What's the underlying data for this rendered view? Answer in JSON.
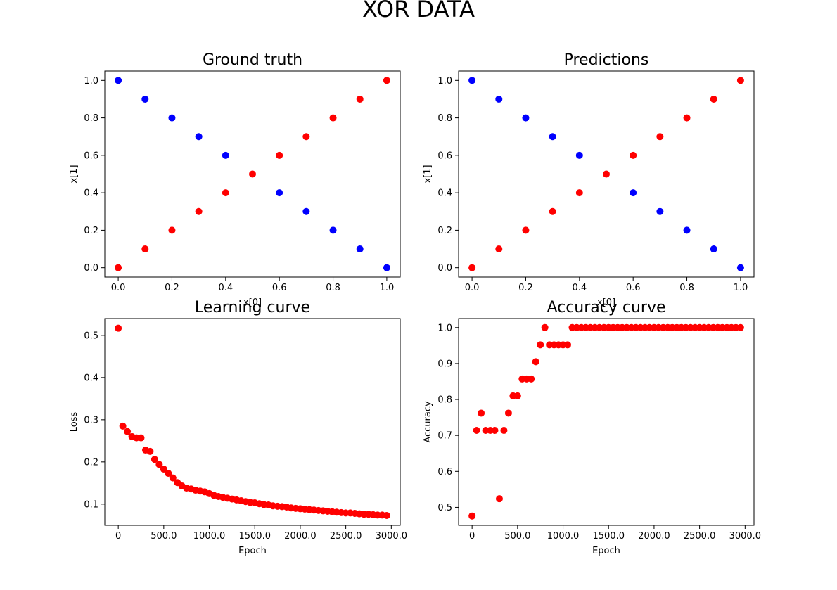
{
  "figure": {
    "suptitle": "XOR DATA"
  },
  "colors": {
    "class0": "#0000ff",
    "class1": "#ff0000",
    "curve": "#ff0000",
    "axes": "#000000"
  },
  "chart_data": [
    {
      "id": "ground-truth",
      "type": "scatter",
      "title": "Ground truth",
      "xlabel": "x[0]",
      "ylabel": "x[1]",
      "xlim": [
        -0.05,
        1.05
      ],
      "ylim": [
        -0.05,
        1.05
      ],
      "xticks": [
        0.0,
        0.2,
        0.4,
        0.6,
        0.8,
        1.0
      ],
      "yticks": [
        0.0,
        0.2,
        0.4,
        0.6,
        0.8,
        1.0
      ],
      "tick_decimals": 1,
      "grid": false,
      "series": [
        {
          "color": "#0000ff",
          "x": [
            0.0,
            0.1,
            0.2,
            0.3,
            0.4,
            0.6,
            0.7,
            0.8,
            0.9,
            1.0
          ],
          "y": [
            1.0,
            0.9,
            0.8,
            0.7,
            0.6,
            0.4,
            0.3,
            0.2,
            0.1,
            0.0
          ]
        },
        {
          "color": "#ff0000",
          "x": [
            0.0,
            0.1,
            0.2,
            0.3,
            0.4,
            0.5,
            0.6,
            0.7,
            0.8,
            0.9,
            1.0
          ],
          "y": [
            0.0,
            0.1,
            0.2,
            0.3,
            0.4,
            0.5,
            0.6,
            0.7,
            0.8,
            0.9,
            1.0
          ]
        }
      ]
    },
    {
      "id": "predictions",
      "type": "scatter",
      "title": "Predictions",
      "xlabel": "x[0]",
      "ylabel": "x[1]",
      "xlim": [
        -0.05,
        1.05
      ],
      "ylim": [
        -0.05,
        1.05
      ],
      "xticks": [
        0.0,
        0.2,
        0.4,
        0.6,
        0.8,
        1.0
      ],
      "yticks": [
        0.0,
        0.2,
        0.4,
        0.6,
        0.8,
        1.0
      ],
      "tick_decimals": 1,
      "grid": false,
      "series": [
        {
          "color": "#0000ff",
          "x": [
            0.0,
            0.1,
            0.2,
            0.3,
            0.4,
            0.6,
            0.7,
            0.8,
            0.9,
            1.0
          ],
          "y": [
            1.0,
            0.9,
            0.8,
            0.7,
            0.6,
            0.4,
            0.3,
            0.2,
            0.1,
            0.0
          ]
        },
        {
          "color": "#ff0000",
          "x": [
            0.0,
            0.1,
            0.2,
            0.3,
            0.4,
            0.5,
            0.6,
            0.7,
            0.8,
            0.9,
            1.0
          ],
          "y": [
            0.0,
            0.1,
            0.2,
            0.3,
            0.4,
            0.5,
            0.6,
            0.7,
            0.8,
            0.9,
            1.0
          ]
        }
      ]
    },
    {
      "id": "learning-curve",
      "type": "scatter",
      "title": "Learning curve",
      "xlabel": "Epoch",
      "ylabel": "Loss",
      "xlim": [
        -148,
        3098
      ],
      "ylim": [
        0.0497,
        0.5398
      ],
      "xticks": [
        0,
        500,
        1000,
        1500,
        2000,
        2500,
        3000
      ],
      "yticks": [
        0.1,
        0.2,
        0.3,
        0.4,
        0.5
      ],
      "tick_decimals": 1,
      "grid": false,
      "series": [
        {
          "color": "#ff0000",
          "x": [
            0,
            50,
            100,
            150,
            200,
            250,
            300,
            350,
            400,
            450,
            500,
            550,
            600,
            650,
            700,
            750,
            800,
            850,
            900,
            950,
            1000,
            1050,
            1100,
            1150,
            1200,
            1250,
            1300,
            1350,
            1400,
            1450,
            1500,
            1550,
            1600,
            1650,
            1700,
            1750,
            1800,
            1850,
            1900,
            1950,
            2000,
            2050,
            2100,
            2150,
            2200,
            2250,
            2300,
            2350,
            2400,
            2450,
            2500,
            2550,
            2600,
            2650,
            2700,
            2750,
            2800,
            2850,
            2900,
            2950
          ],
          "y": [
            0.517,
            0.285,
            0.272,
            0.26,
            0.257,
            0.257,
            0.228,
            0.225,
            0.206,
            0.194,
            0.183,
            0.173,
            0.162,
            0.151,
            0.143,
            0.138,
            0.136,
            0.133,
            0.131,
            0.129,
            0.125,
            0.121,
            0.118,
            0.116,
            0.114,
            0.112,
            0.11,
            0.108,
            0.106,
            0.104,
            0.103,
            0.101,
            0.099,
            0.098,
            0.096,
            0.095,
            0.094,
            0.093,
            0.091,
            0.09,
            0.089,
            0.088,
            0.087,
            0.086,
            0.085,
            0.084,
            0.083,
            0.082,
            0.081,
            0.08,
            0.079,
            0.079,
            0.078,
            0.077,
            0.076,
            0.076,
            0.075,
            0.074,
            0.074,
            0.073
          ]
        }
      ]
    },
    {
      "id": "accuracy-curve",
      "type": "scatter",
      "title": "Accuracy curve",
      "xlabel": "Epoch",
      "ylabel": "Accuracy",
      "xlim": [
        -148,
        3098
      ],
      "ylim": [
        0.45,
        1.025
      ],
      "xticks": [
        0,
        500,
        1000,
        1500,
        2000,
        2500,
        3000
      ],
      "yticks": [
        0.5,
        0.6,
        0.7,
        0.8,
        0.9,
        1.0
      ],
      "tick_decimals": 1,
      "grid": false,
      "series": [
        {
          "color": "#ff0000",
          "x": [
            0,
            50,
            100,
            150,
            200,
            250,
            300,
            350,
            400,
            450,
            500,
            550,
            600,
            650,
            700,
            750,
            800,
            850,
            900,
            950,
            1000,
            1050,
            1100,
            1150,
            1200,
            1250,
            1300,
            1350,
            1400,
            1450,
            1500,
            1550,
            1600,
            1650,
            1700,
            1750,
            1800,
            1850,
            1900,
            1950,
            2000,
            2050,
            2100,
            2150,
            2200,
            2250,
            2300,
            2350,
            2400,
            2450,
            2500,
            2550,
            2600,
            2650,
            2700,
            2750,
            2800,
            2850,
            2900,
            2950
          ],
          "y": [
            0.476,
            0.714,
            0.762,
            0.714,
            0.714,
            0.714,
            0.524,
            0.714,
            0.762,
            0.81,
            0.81,
            0.857,
            0.857,
            0.857,
            0.905,
            0.952,
            1.0,
            0.952,
            0.952,
            0.952,
            0.952,
            0.952,
            1.0,
            1.0,
            1.0,
            1.0,
            1.0,
            1.0,
            1.0,
            1.0,
            1.0,
            1.0,
            1.0,
            1.0,
            1.0,
            1.0,
            1.0,
            1.0,
            1.0,
            1.0,
            1.0,
            1.0,
            1.0,
            1.0,
            1.0,
            1.0,
            1.0,
            1.0,
            1.0,
            1.0,
            1.0,
            1.0,
            1.0,
            1.0,
            1.0,
            1.0,
            1.0,
            1.0,
            1.0,
            1.0
          ]
        }
      ]
    }
  ]
}
